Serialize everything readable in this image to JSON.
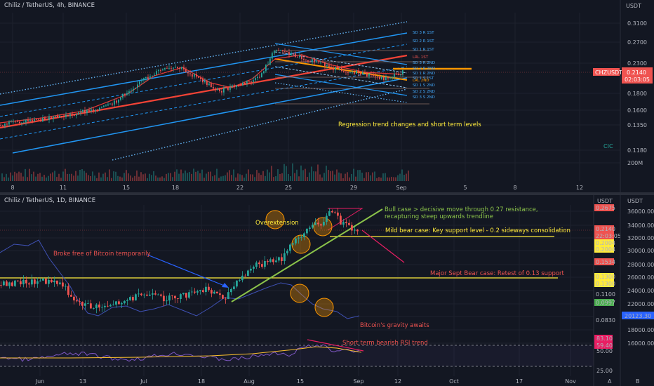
{
  "colors": {
    "bg": "#131722",
    "up": "#26a69a",
    "down": "#ef5350",
    "grid": "#1e222d",
    "reg": "#f44336",
    "chan": "#2196f3",
    "orange": "#ff9800",
    "yellow": "#ffeb3b",
    "green": "#8bc34a",
    "pink": "#e91e63",
    "btc": "#3f51b5"
  },
  "top": {
    "title": "Chiliz / TetherUS, 4h, BINANCE",
    "currency": "USDT",
    "yticks": [
      "0.3100",
      "0.2700",
      "0.2300",
      "0.2140",
      "0.1800",
      "0.1600",
      "0.1350",
      "0.1180",
      "200M"
    ],
    "xticks": [
      "8",
      "11",
      "15",
      "18",
      "22",
      "25",
      "29",
      "Sep",
      "5",
      "8",
      "12"
    ],
    "symbol_tag": "CHZUSDT",
    "price_tag": "0.2140",
    "countdown": "02:03:05",
    "annotation": "Regression trend changes and short term levels",
    "corner_mark": "CIC",
    "level_labels": [
      "SD 3 R 1ST",
      "SD 2 R 1ST",
      "SD 1 R 1ST",
      "LRL 1ST",
      "SD 3 R 2ND",
      "SD 2 R 2ND",
      "SD 1 R 2ND",
      "SD 1 S 1ST",
      "LRL 2ND",
      "SD 1 S 2ND",
      "SD 2 S 2ND",
      "SD 3 S 2ND"
    ]
  },
  "bottom": {
    "title": "Chiliz / TetherUS, 1D, BINANCE",
    "currency_left": "USDT",
    "currency_right": "USDT",
    "yticks_left": [
      "0.2675",
      "0.2140",
      "22:03:05",
      "0.2004",
      "0.2004",
      "0.1534",
      "0.1300",
      "0.1300",
      "0.1100",
      "0.0997",
      "0.0830"
    ],
    "yticks_right": [
      "36000.00",
      "34000.00",
      "32000.00",
      "30000.00",
      "28000.00",
      "26000.00",
      "24000.00",
      "22000.00",
      "20123.30",
      "18000.00",
      "16000.00"
    ],
    "rsi_ticks": [
      "83.10",
      "59.40",
      "50.00",
      "25.00"
    ],
    "xticks": [
      "Jun",
      "13",
      "Jul",
      "18",
      "Aug",
      "15",
      "Sep",
      "12",
      "Oct",
      "17",
      "Nov"
    ],
    "annotations": {
      "overextension": "Overextension",
      "bull_case_line1": "Bull case > decisive move through 0.27 resistance,",
      "bull_case_line2": "recapturing steep upwards trendline",
      "mild_bear": "Mild bear case: Key support level - 0.2 sideways consolidation",
      "broke_free": "Broke free of Bitcoin temporarily",
      "major_bear": "Major Sept Bear case: Retest of 0.13 support",
      "gravity": "Bitcoin's gravity awaits",
      "rsi_note": "Short term bearish RSI trend"
    },
    "corner_icons": [
      "A",
      "B"
    ]
  },
  "chart_data": [
    {
      "type": "line",
      "title": "Chiliz / TetherUS, 4h, BINANCE",
      "x": [
        "8",
        "11",
        "15",
        "18",
        "22",
        "25",
        "29",
        "Sep"
      ],
      "series": [
        {
          "name": "CHZUSDT",
          "values": [
            0.14,
            0.152,
            0.185,
            0.215,
            0.185,
            0.262,
            0.22,
            0.214
          ]
        }
      ],
      "ylim": [
        0.105,
        0.32
      ]
    },
    {
      "type": "line",
      "title": "Chiliz / TetherUS, 1D, BINANCE",
      "x": [
        "Jun",
        "13",
        "Jul",
        "18",
        "Aug",
        "15",
        "Sep"
      ],
      "series": [
        {
          "name": "CHZUSDT",
          "values": [
            0.13,
            0.122,
            0.118,
            0.12,
            0.13,
            0.22,
            0.214
          ]
        },
        {
          "name": "",
          "values": [
            31000,
            22000,
            20500,
            21500,
            23500,
            22500,
            20123.3
          ]
        }
      ],
      "ylim": [
        0.075,
        0.28
      ]
    }
  ]
}
